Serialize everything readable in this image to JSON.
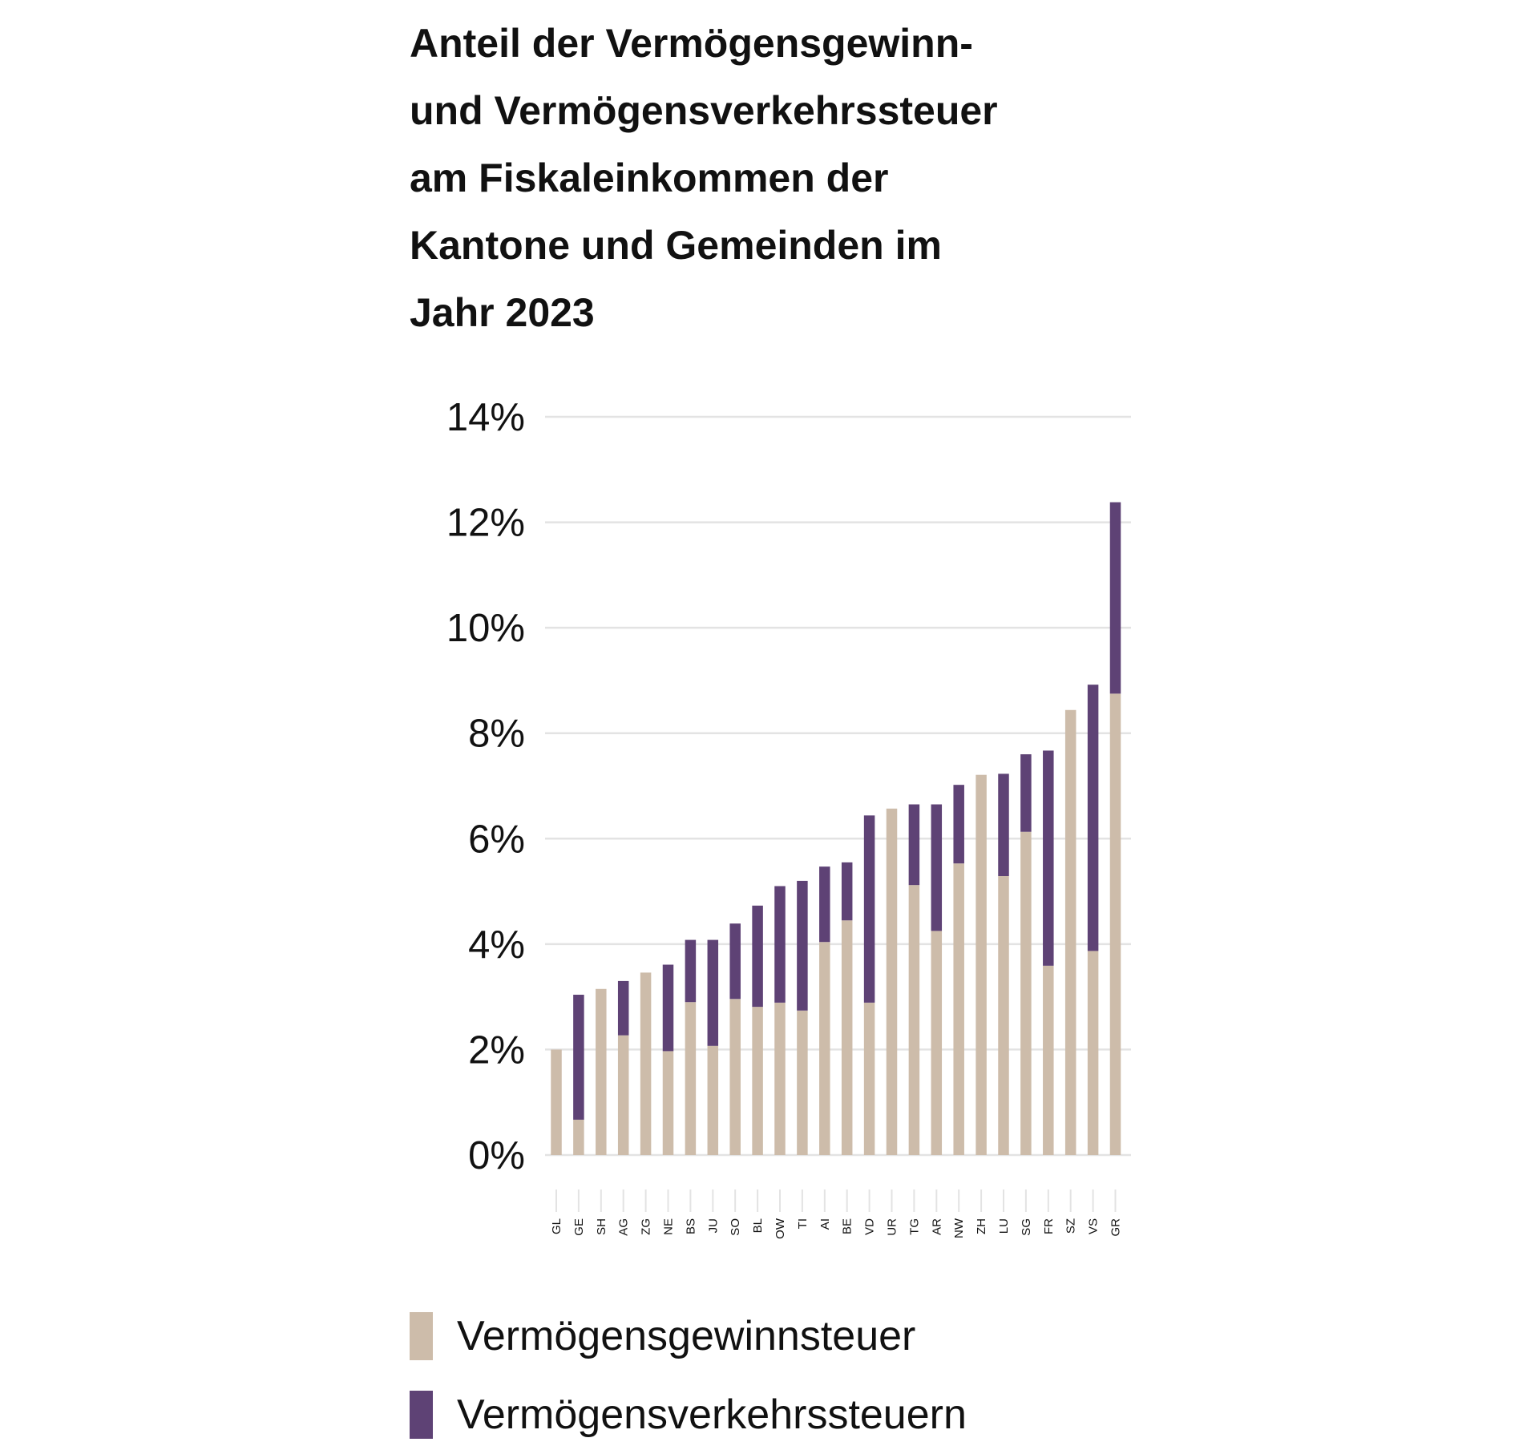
{
  "chart_data": {
    "type": "bar",
    "stacked": true,
    "title": "Anteil der Vermögensgewinn- und Vermögensverkehrssteuer am Fiskaleinkommen der Kantone und Gemeinden im Jahr 2023",
    "title_lines": [
      "Anteil der Vermögensgewinn-",
      "und Vermögensverkehrssteuer",
      "am Fiskaleinkommen der",
      "Kantone und Gemeinden im",
      "Jahr 2023"
    ],
    "xlabel": "",
    "ylabel": "",
    "ylim": [
      0,
      14
    ],
    "yticks": [
      "0%",
      "2%",
      "4%",
      "6%",
      "8%",
      "10%",
      "12%",
      "14%"
    ],
    "grid": true,
    "legend_position": "bottom",
    "categories": [
      "GL",
      "GE",
      "SH",
      "AG",
      "ZG",
      "NE",
      "BS",
      "JU",
      "SO",
      "BL",
      "OW",
      "TI",
      "AI",
      "BE",
      "VD",
      "UR",
      "TG",
      "AR",
      "NW",
      "ZH",
      "LU",
      "SG",
      "FR",
      "SZ",
      "VS",
      "GR"
    ],
    "series": [
      {
        "name": "Vermögensgewinnsteuer",
        "color": "#cdbcaa",
        "values": [
          2.0,
          0.67,
          3.15,
          2.27,
          3.46,
          1.97,
          2.9,
          2.07,
          2.96,
          2.81,
          2.89,
          2.74,
          4.04,
          4.45,
          2.89,
          6.57,
          5.12,
          4.25,
          5.53,
          7.21,
          5.29,
          6.13,
          3.59,
          8.44,
          3.87,
          8.75
        ]
      },
      {
        "name": "Vermögensverkehrssteuern",
        "color": "#5e4275",
        "values": [
          0,
          2.37,
          0,
          1.03,
          0,
          1.64,
          1.18,
          2.01,
          1.43,
          1.92,
          2.21,
          2.46,
          1.43,
          1.1,
          3.55,
          0,
          1.53,
          2.4,
          1.49,
          0,
          1.94,
          1.47,
          4.08,
          0,
          5.05,
          3.63
        ]
      }
    ]
  }
}
